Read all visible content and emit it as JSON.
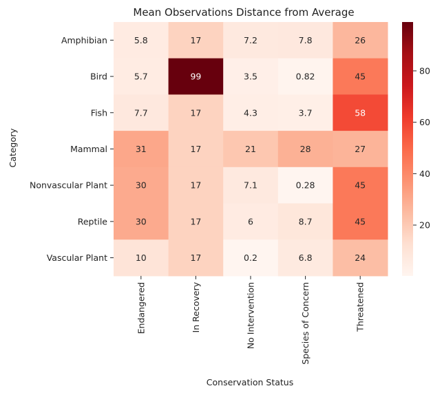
{
  "chart_data": {
    "type": "heatmap",
    "title": "Mean Observations Distance from Average",
    "xlabel": "Conservation Status",
    "ylabel": "Category",
    "x_categories": [
      "Endangered",
      "In Recovery",
      "No Intervention",
      "Species of Concern",
      "Threatened"
    ],
    "y_categories": [
      "Amphibian",
      "Bird",
      "Fish",
      "Mammal",
      "Nonvascular Plant",
      "Reptile",
      "Vascular Plant"
    ],
    "values": [
      [
        5.8,
        17,
        7.2,
        7.8,
        26
      ],
      [
        5.7,
        99,
        3.5,
        0.82,
        45
      ],
      [
        7.7,
        17,
        4.3,
        3.7,
        58
      ],
      [
        31,
        17,
        21,
        28,
        27
      ],
      [
        30,
        17,
        7.1,
        0.28,
        45
      ],
      [
        30,
        17,
        6,
        8.7,
        45
      ],
      [
        10,
        17,
        0.2,
        6.8,
        24
      ]
    ],
    "annotations": [
      [
        "5.8",
        "17",
        "7.2",
        "7.8",
        "26"
      ],
      [
        "5.7",
        "99",
        "3.5",
        "0.82",
        "45"
      ],
      [
        "7.7",
        "17",
        "4.3",
        "3.7",
        "58"
      ],
      [
        "31",
        "17",
        "21",
        "28",
        "27"
      ],
      [
        "30",
        "17",
        "7.1",
        "0.28",
        "45"
      ],
      [
        "30",
        "17",
        "6",
        "8.7",
        "45"
      ],
      [
        "10",
        "17",
        "0.2",
        "6.8",
        "24"
      ]
    ],
    "colormap": "Reds",
    "colorbar": {
      "range": [
        0.2,
        99
      ],
      "ticks": [
        "20",
        "40",
        "60",
        "80"
      ],
      "tick_values": [
        20,
        40,
        60,
        80
      ]
    },
    "grid": false,
    "colors": {
      "low": "#fff5f0",
      "high": "#67000d",
      "text_dark": "#262626",
      "text_light": "#ffffff"
    }
  }
}
